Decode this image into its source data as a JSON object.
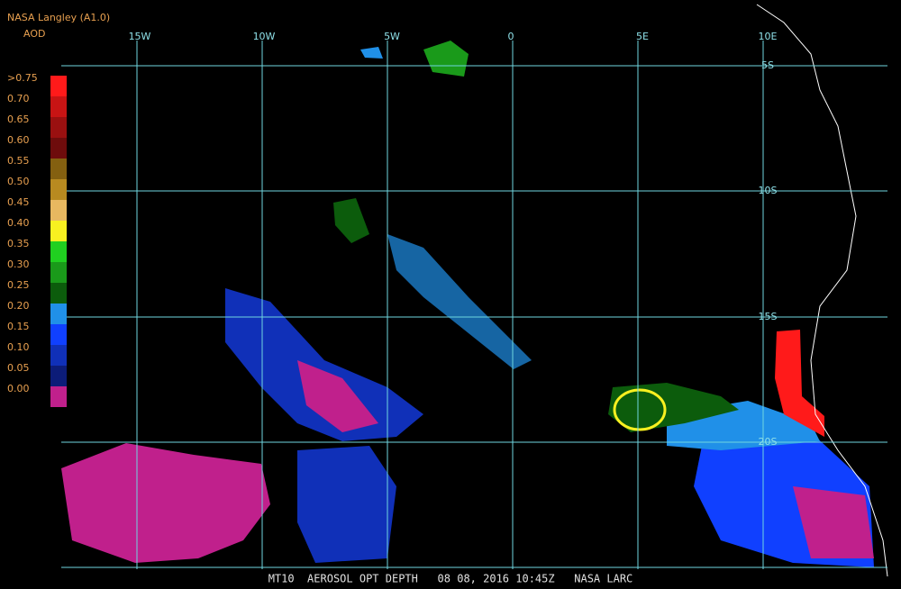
{
  "header": {
    "source": "NASA Langley (A1.0)"
  },
  "legend": {
    "title": "AOD",
    "labels": [
      ">0.75",
      "0.70",
      "0.65",
      "0.60",
      "0.55",
      "0.50",
      "0.45",
      "0.40",
      "0.35",
      "0.30",
      "0.25",
      "0.20",
      "0.15",
      "0.10",
      "0.05",
      "0.00"
    ],
    "colors": [
      "#ff1a1a",
      "#c81414",
      "#9a1010",
      "#6e0c0c",
      "#846010",
      "#b88a20",
      "#e8b860",
      "#f8f020",
      "#20d020",
      "#1a9a1a",
      "#0c5c0c",
      "#2090e8",
      "#1040ff",
      "#1030b8",
      "#0c1c78",
      "#c0208c"
    ]
  },
  "map": {
    "longitude_labels": [
      "15W",
      "10W",
      "5W",
      "0",
      "5E",
      "10E"
    ],
    "latitude_labels": [
      "5S",
      "10S",
      "15S",
      "20S"
    ]
  },
  "footer": {
    "caption": "MT10  AEROSOL OPT DEPTH   08 08, 2016 10:45Z   NASA LARC"
  }
}
